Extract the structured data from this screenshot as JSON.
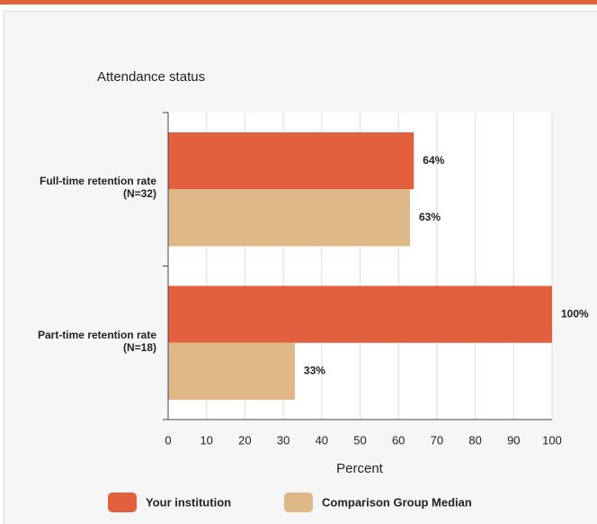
{
  "chart_data": {
    "type": "hbar",
    "title": "Attendance status",
    "categories": [
      "Full-time retention rate (N=32)",
      "Part-time retention rate (N=18)"
    ],
    "series": [
      {
        "name": "Your institution",
        "color": "#e2603d",
        "values": [
          64,
          100
        ],
        "value_labels": [
          "64%",
          "100%"
        ]
      },
      {
        "name": "Comparison Group Median",
        "color": "#deb887",
        "values": [
          63,
          33
        ],
        "value_labels": [
          "63%",
          "33%"
        ]
      }
    ],
    "xlabel": "Percent",
    "xlim": [
      0,
      100
    ],
    "xticks": [
      0,
      10,
      20,
      30,
      40,
      50,
      60,
      70,
      80,
      90,
      100
    ],
    "grid": true,
    "legend": "bottom"
  }
}
